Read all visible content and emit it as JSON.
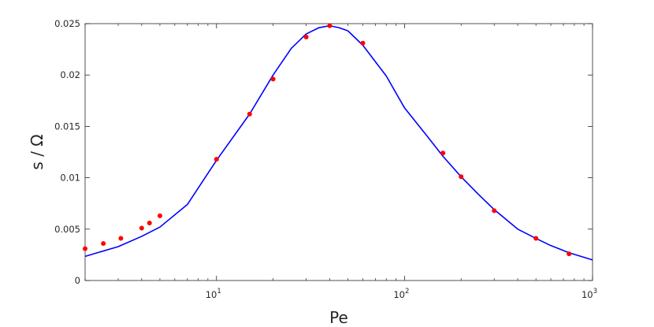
{
  "chart_data": {
    "type": "scatter",
    "title": "",
    "xlabel": "Pe",
    "ylabel": "s / Ω",
    "xscale": "log",
    "xlim": [
      2,
      1000
    ],
    "ylim": [
      0,
      0.025
    ],
    "grid": false,
    "x_ticks": [
      {
        "value": 10,
        "base": "10",
        "exp": "1"
      },
      {
        "value": 100,
        "base": "10",
        "exp": "2"
      },
      {
        "value": 1000,
        "base": "10",
        "exp": "3"
      }
    ],
    "y_ticks": [
      {
        "value": 0,
        "label": "0"
      },
      {
        "value": 0.005,
        "label": "0.005"
      },
      {
        "value": 0.01,
        "label": "0.01"
      },
      {
        "value": 0.015,
        "label": "0.015"
      },
      {
        "value": 0.02,
        "label": "0.02"
      },
      {
        "value": 0.025,
        "label": "0.025"
      }
    ],
    "series": [
      {
        "kind": "markers",
        "color": "#ff0000",
        "x": [
          2,
          2.5,
          3.1,
          4.0,
          4.4,
          5.0,
          10,
          15,
          20,
          30,
          40,
          60,
          160,
          200,
          300,
          500,
          750
        ],
        "y": [
          0.0031,
          0.0036,
          0.0041,
          0.0051,
          0.0056,
          0.0063,
          0.0118,
          0.0162,
          0.0196,
          0.0237,
          0.0248,
          0.0231,
          0.0124,
          0.0101,
          0.0068,
          0.0041,
          0.0026
        ]
      },
      {
        "kind": "line",
        "color": "#0000ff",
        "x": [
          2,
          3,
          4,
          5,
          7,
          10,
          15,
          20,
          25,
          30,
          35,
          40,
          45,
          50,
          60,
          80,
          100,
          130,
          160,
          200,
          250,
          300,
          400,
          500,
          600,
          750,
          1000
        ],
        "y": [
          0.00235,
          0.0033,
          0.0043,
          0.0052,
          0.0074,
          0.0117,
          0.0162,
          0.02,
          0.0226,
          0.024,
          0.0246,
          0.0248,
          0.0246,
          0.0243,
          0.0229,
          0.0199,
          0.0168,
          0.0142,
          0.0121,
          0.0101,
          0.0083,
          0.0069,
          0.005,
          0.0041,
          0.0034,
          0.0027,
          0.002
        ]
      }
    ]
  }
}
